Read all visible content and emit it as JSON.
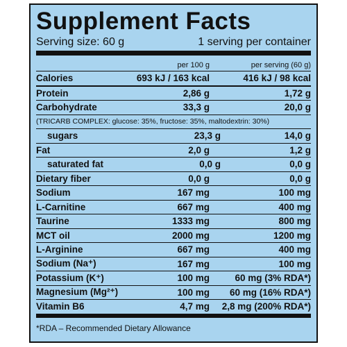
{
  "header": {
    "title": "Supplement Facts",
    "serving_size": "Serving size: 60 g",
    "servings": "1 serving per container"
  },
  "table": {
    "columns": [
      "per 100 g",
      "per serving (60 g)"
    ],
    "rows": [
      {
        "label": "Calories",
        "per_100g": "693 kJ / 163 kcal",
        "per_serving": "416 kJ / 98 kcal"
      },
      {
        "label": "Protein",
        "per_100g": "2,86 g",
        "per_serving": "1,72 g"
      },
      {
        "label": "Carbohydrate",
        "per_100g": "33,3 g",
        "per_serving": "20,0 g"
      },
      {
        "note": "(TRICARB COMPLEX: glucose: 35%, fructose: 35%, maltodextrin: 30%)"
      },
      {
        "label": "sugars",
        "per_100g": "23,3 g",
        "per_serving": "14,0 g",
        "indent": true
      },
      {
        "label": "Fat",
        "per_100g": "2,0 g",
        "per_serving": "1,2 g"
      },
      {
        "label": "saturated fat",
        "per_100g": "0,0 g",
        "per_serving": "0,0 g",
        "indent": true
      },
      {
        "label": "Dietary fiber",
        "per_100g": "0,0 g",
        "per_serving": "0,0 g"
      },
      {
        "label": "Sodium",
        "per_100g": "167 mg",
        "per_serving": "100 mg"
      },
      {
        "label": "L-Carnitine",
        "per_100g": "667 mg",
        "per_serving": "400 mg"
      },
      {
        "label": "Taurine",
        "per_100g": "1333 mg",
        "per_serving": "800 mg"
      },
      {
        "label": "MCT oil",
        "per_100g": "2000 mg",
        "per_serving": "1200 mg"
      },
      {
        "label": "L-Arginine",
        "per_100g": "667 mg",
        "per_serving": "400 mg"
      },
      {
        "label": "Sodium (Na⁺)",
        "per_100g": "167 mg",
        "per_serving": "100 mg"
      },
      {
        "label": "Potassium (K⁺)",
        "per_100g": "100 mg",
        "per_serving": "60 mg (3% RDA*)"
      },
      {
        "label": "Magnesium (Mg²⁺)",
        "per_100g": "100 mg",
        "per_serving": "60 mg (16% RDA*)"
      },
      {
        "label": "Vitamin B6",
        "per_100g": "4,7 mg",
        "per_serving": "2,8 mg (200% RDA*)"
      }
    ]
  },
  "footnote": "*RDA – Recommended Dietary Allowance"
}
